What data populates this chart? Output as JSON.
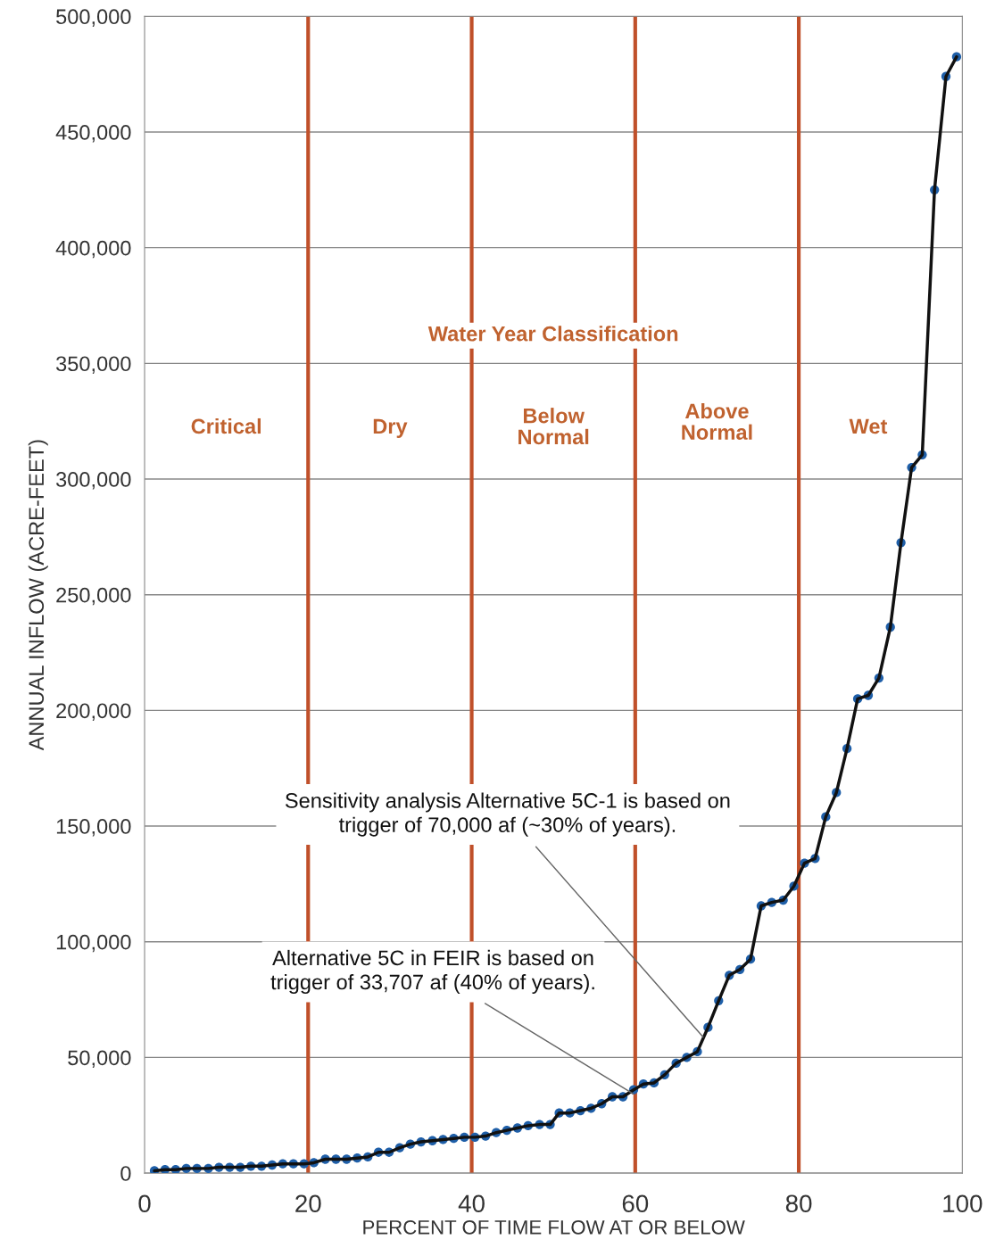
{
  "chart_data": {
    "type": "line",
    "xlabel": "PERCENT OF TIME FLOW AT OR BELOW",
    "ylabel": "ANNUAL INFLOW (ACRE-FEET)",
    "x": [
      1.2,
      2.5,
      3.8,
      5.1,
      6.4,
      7.8,
      9.1,
      10.4,
      11.7,
      13.0,
      14.3,
      15.6,
      16.9,
      18.2,
      19.5,
      20.7,
      22.1,
      23.4,
      24.7,
      26.0,
      27.3,
      28.6,
      29.9,
      31.2,
      32.5,
      33.8,
      35.2,
      36.5,
      37.8,
      39.1,
      40.4,
      41.7,
      43.0,
      44.3,
      45.6,
      46.9,
      48.3,
      49.6,
      50.7,
      52.0,
      53.3,
      54.6,
      55.9,
      57.2,
      58.5,
      59.8,
      61.0,
      62.3,
      63.6,
      65.0,
      66.3,
      67.6,
      68.9,
      70.2,
      71.5,
      72.8,
      74.1,
      75.4,
      76.7,
      78.1,
      79.4,
      80.7,
      82.0,
      83.3,
      84.6,
      85.9,
      87.2,
      88.5,
      89.8,
      91.2,
      92.5,
      93.8,
      95.1,
      96.6,
      98.0,
      99.3
    ],
    "series": [
      {
        "color": "#1f5fa8",
        "values": [
          1000,
          1500,
          1500,
          2000,
          2000,
          2000,
          2500,
          2500,
          2500,
          3000,
          3000,
          3500,
          4000,
          4000,
          4000,
          4500,
          6000,
          6000,
          6000,
          6500,
          7000,
          9000,
          9000,
          11000,
          12500,
          13500,
          14000,
          14500,
          15000,
          15500,
          15500,
          16000,
          17500,
          18500,
          19500,
          20500,
          21000,
          21000,
          26000,
          26000,
          27000,
          28000,
          30000,
          33000,
          33000,
          36000,
          38500,
          39000,
          42500,
          47500,
          50000,
          52500,
          63000,
          74500,
          85500,
          88000,
          92500,
          115500,
          117000,
          118000,
          124000,
          134000,
          136000,
          154000,
          164500,
          183500,
          205000,
          206500,
          214000,
          236000,
          272500,
          305000,
          310500,
          425000,
          474000,
          482500
        ]
      }
    ],
    "marker": "circle",
    "line_style": "solid",
    "xlim": [
      0,
      100
    ],
    "xticks": [
      0,
      20,
      40,
      60,
      80,
      100
    ],
    "ylim": [
      0,
      500000
    ],
    "yticks": [
      {
        "value": 0,
        "label": "0"
      },
      {
        "value": 50000,
        "label": "50,000"
      },
      {
        "value": 100000,
        "label": "100,000"
      },
      {
        "value": 150000,
        "label": "150,000"
      },
      {
        "value": 200000,
        "label": "200,000"
      },
      {
        "value": 250000,
        "label": "250,000"
      },
      {
        "value": 300000,
        "label": "300,000"
      },
      {
        "value": 350000,
        "label": "350,000"
      },
      {
        "value": 400000,
        "label": "400,000"
      },
      {
        "value": 450000,
        "label": "450,000"
      },
      {
        "value": 500000,
        "label": "500,000"
      }
    ],
    "grid": "y",
    "legend": false,
    "ref_lines": [
      {
        "axis": "x",
        "value": 20,
        "color": "#c0502a"
      },
      {
        "axis": "x",
        "value": 40,
        "color": "#c0502a"
      },
      {
        "axis": "x",
        "value": 60,
        "color": "#c0502a"
      },
      {
        "axis": "x",
        "value": 80,
        "color": "#c0502a"
      }
    ],
    "annotations": [
      "Water Year Classification",
      "Critical",
      "Dry",
      "Below\nNormal",
      "Above\nNormal",
      "Wet",
      {
        "text": "Sensitivity analysis Alternative 5C-1 is based on\ntrigger of 70,000 af (~30% of years).",
        "x": 68.5,
        "y": 58000
      },
      {
        "text": "Alternative 5C in FEIR is based on\ntrigger of 33,707 af (40% of years).",
        "x": 60,
        "y": 33707
      }
    ]
  }
}
